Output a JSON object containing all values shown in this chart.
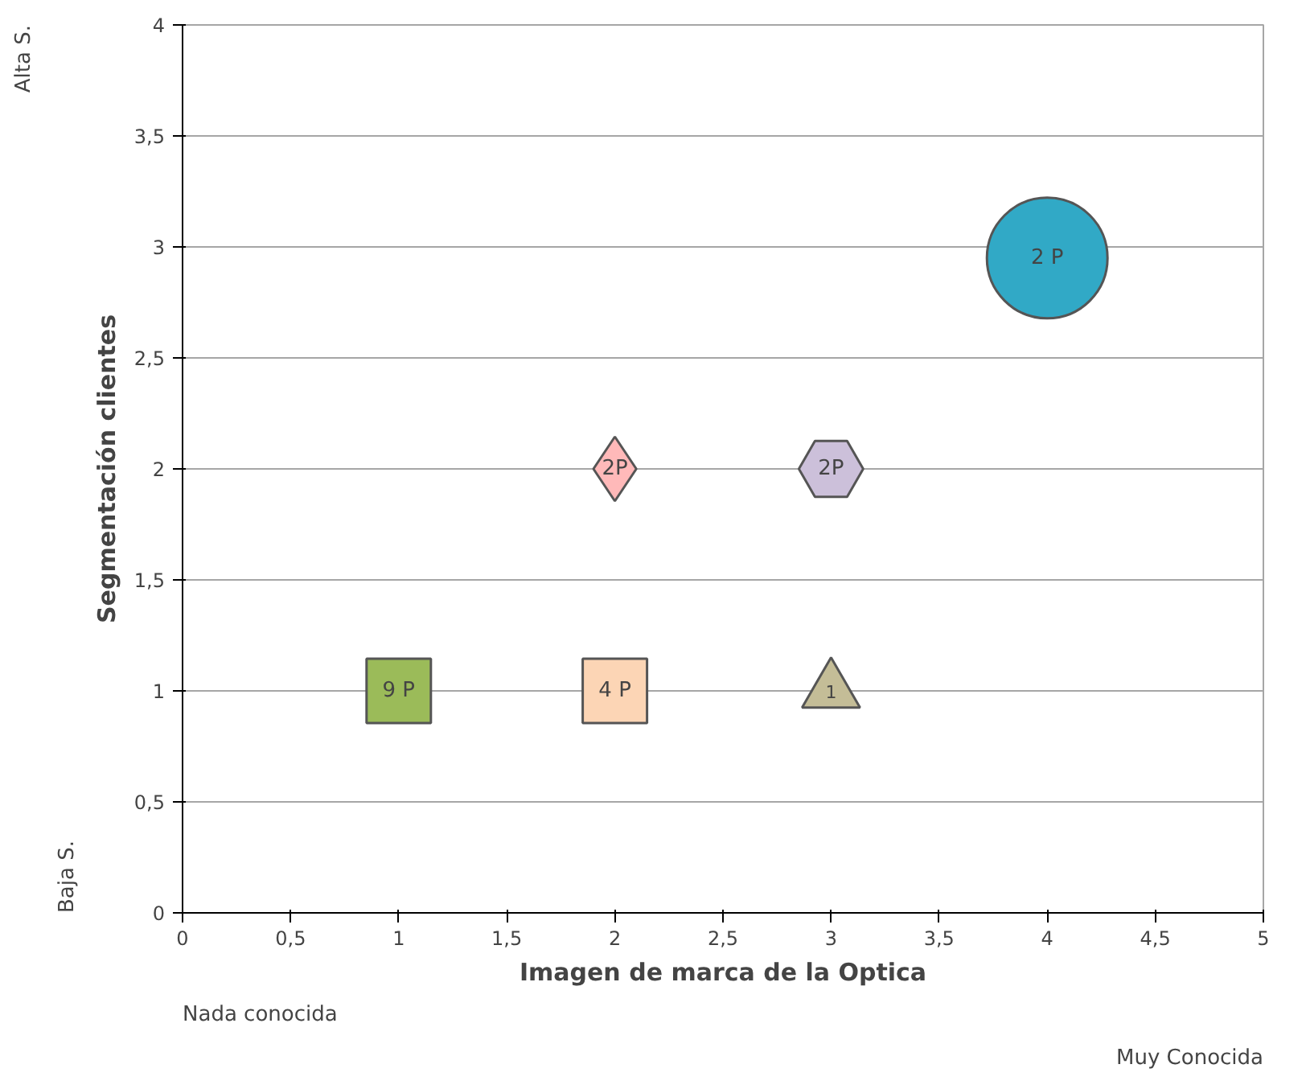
{
  "chart_data": {
    "type": "scatter",
    "xlabel": "Imagen de marca de la Optica",
    "ylabel": "Segmentación clientes",
    "xlim": [
      0,
      5
    ],
    "xticks": [
      0,
      {
        "value": 0.5,
        "label": "0,5"
      },
      1,
      {
        "value": 1.5,
        "label": "1,5"
      },
      2,
      {
        "value": 2.5,
        "label": "2,5"
      },
      3,
      {
        "value": 3.5,
        "label": "3,5"
      },
      4,
      {
        "value": 4.5,
        "label": "4,5"
      },
      5
    ],
    "ylim": [
      0,
      4
    ],
    "yticks": [
      0,
      {
        "value": 0.5,
        "label": "0,5"
      },
      1,
      {
        "value": 1.5,
        "label": "1,5"
      },
      2,
      {
        "value": 2.5,
        "label": "2,5"
      },
      3,
      {
        "value": 3.5,
        "label": "3,5"
      },
      4
    ],
    "grid": "y",
    "series": [
      {
        "x": [
          1
        ],
        "values": [
          1
        ],
        "color": "#9bbb59",
        "marker": "square"
      },
      {
        "x": [
          2
        ],
        "values": [
          1
        ],
        "color": "#fcd5b5",
        "marker": "square"
      },
      {
        "x": [
          3
        ],
        "values": [
          1
        ],
        "color": "#c4bd97",
        "marker": "triangle"
      },
      {
        "x": [
          2
        ],
        "values": [
          2
        ],
        "color": "#ffb9b9",
        "marker": "diamond"
      },
      {
        "x": [
          3
        ],
        "values": [
          2
        ],
        "color": "#ccc0da"
      },
      {
        "x": [
          4
        ],
        "values": [
          2.95
        ],
        "color": "#31a9c6",
        "marker": "circle"
      }
    ],
    "annotations": [
      {
        "text": "9 P",
        "x": 1,
        "y": 1
      },
      {
        "text": "4 P",
        "x": 2,
        "y": 1
      },
      "1",
      {
        "text": "2P",
        "x": 2,
        "y": 2
      },
      {
        "text": "2P",
        "x": 3,
        "y": 2
      },
      {
        "text": "2 P",
        "x": 4,
        "y": 2.95
      },
      "Nada conocida",
      "Muy Conocida",
      "Baja S.",
      "Alta S."
    ]
  }
}
